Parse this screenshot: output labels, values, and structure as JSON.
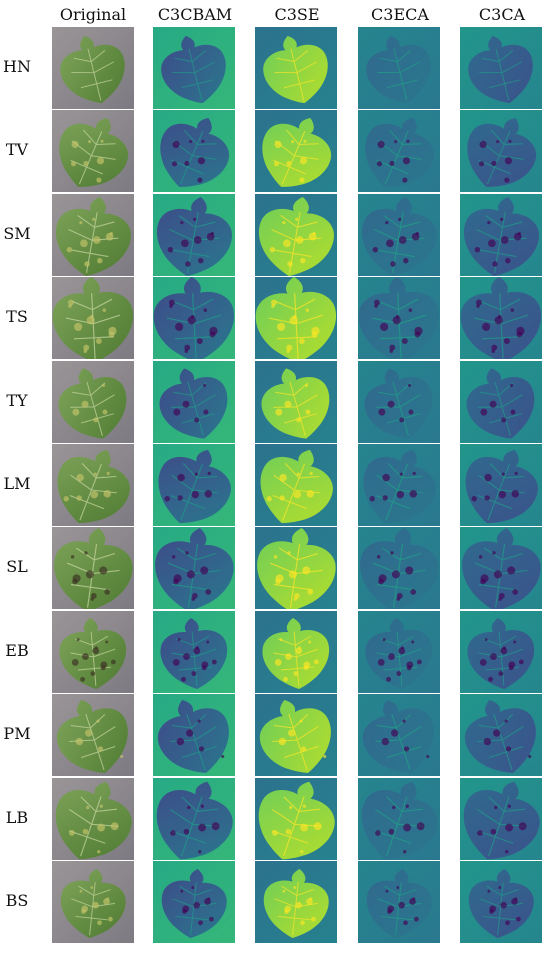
{
  "columns": [
    {
      "label": "Original",
      "kind": "original"
    },
    {
      "label": "C3CBAM",
      "kind": "c3cbam"
    },
    {
      "label": "C3SE",
      "kind": "c3se"
    },
    {
      "label": "C3ECA",
      "kind": "c3eca"
    },
    {
      "label": "C3CA",
      "kind": "c3ca"
    }
  ],
  "rows": [
    "HN",
    "TV",
    "SM",
    "TS",
    "TY",
    "LM",
    "SL",
    "EB",
    "PM",
    "LB",
    "BS"
  ],
  "colors": {
    "viridis_dark": "#3b528b",
    "viridis_mid": "#21918c",
    "viridis_green": "#5ec962",
    "viridis_yellow": "#fde725",
    "leaf_green": "#6f9a4a",
    "background_gray": "#8f8a8c"
  }
}
